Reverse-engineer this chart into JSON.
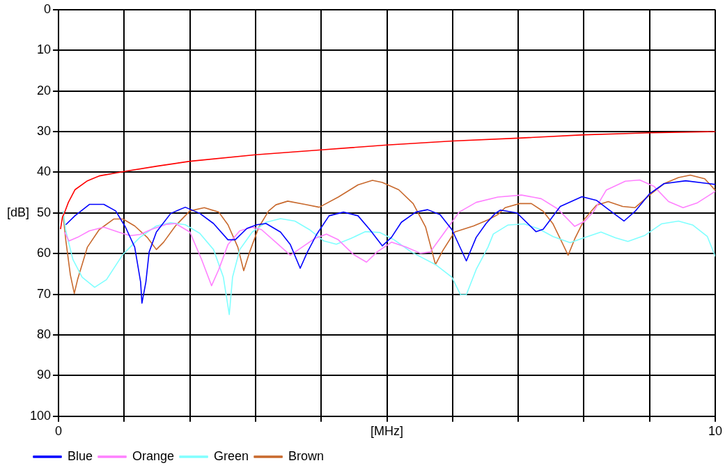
{
  "chart_data": {
    "type": "line",
    "xlabel": "[MHz]",
    "ylabel": "[dB]",
    "xlim": [
      0,
      10
    ],
    "ylim": [
      100,
      0
    ],
    "xticks": [
      0,
      {
        "value": 1,
        "label": null
      },
      {
        "value": 2,
        "label": null
      },
      {
        "value": 3,
        "label": null
      },
      {
        "value": 4,
        "label": null
      },
      {
        "value": 5,
        "label": null
      },
      {
        "value": 6,
        "label": null
      },
      {
        "value": 7,
        "label": null
      },
      {
        "value": 8,
        "label": null
      },
      {
        "value": 9,
        "label": null
      },
      10
    ],
    "yticks": [
      0,
      10,
      20,
      30,
      40,
      50,
      60,
      70,
      80,
      90,
      100
    ],
    "grid": true,
    "legend": "bottom",
    "marker": "none",
    "line_style": "solid",
    "series": [
      {
        "color": "#ff0000",
        "x": [
          0.03,
          0.06,
          0.09,
          0.15,
          0.25,
          0.44,
          0.62,
          1,
          1.5,
          2,
          3,
          4,
          5,
          6,
          7,
          8,
          9,
          10
        ],
        "values": [
          54,
          51,
          50,
          47.4,
          44.3,
          42.1,
          40.9,
          39.8,
          38.5,
          37.3,
          35.7,
          34.5,
          33.3,
          32.3,
          31.6,
          30.8,
          30.3,
          30
        ]
      },
      {
        "name": "Blue",
        "color": "#0000ff",
        "x": [
          0.11,
          0.25,
          0.47,
          0.69,
          0.87,
          1.02,
          1.16,
          1.25,
          1.27,
          1.33,
          1.38,
          1.49,
          1.71,
          1.93,
          2.15,
          2.36,
          2.58,
          2.69,
          2.87,
          3.02,
          3.16,
          3.38,
          3.53,
          3.68,
          3.79,
          3.93,
          4.12,
          4.34,
          4.56,
          4.74,
          4.93,
          5.07,
          5.22,
          5.44,
          5.62,
          5.81,
          5.99,
          6.21,
          6.36,
          6.51,
          6.65,
          6.73,
          6.98,
          7.27,
          7.38,
          7.64,
          7.97,
          8.19,
          8.41,
          8.61,
          8.78,
          9,
          9.22,
          9.55,
          10
        ],
        "values": [
          52.9,
          50.7,
          47.9,
          47.9,
          49.5,
          53.5,
          58.4,
          67,
          72.2,
          67,
          59.6,
          54.7,
          50.1,
          48.6,
          50.1,
          52.6,
          56.6,
          56.6,
          53.8,
          52.9,
          52.6,
          54.7,
          57.8,
          63.6,
          59.6,
          55.3,
          50.7,
          49.8,
          50.7,
          54.1,
          58.1,
          56,
          52.3,
          49.8,
          49.2,
          50.4,
          54.1,
          61.8,
          56,
          52.6,
          50.1,
          49.3,
          50,
          54.6,
          54,
          48.4,
          46,
          46.9,
          49.6,
          52,
          49.6,
          45.3,
          42.8,
          42.1,
          43
        ]
      },
      {
        "name": "Orange",
        "color": "#ff80ff",
        "x": [
          0.09,
          0.16,
          0.29,
          0.47,
          0.69,
          0.91,
          1.09,
          1.24,
          1.42,
          1.64,
          1.78,
          2,
          2.18,
          2.33,
          2.44,
          2.58,
          2.76,
          2.95,
          3.09,
          3.35,
          3.53,
          3.71,
          3.9,
          4.08,
          4.26,
          4.49,
          4.69,
          4.85,
          5.07,
          5.29,
          5.51,
          5.66,
          5.88,
          6.1,
          6.36,
          6.69,
          7.05,
          7.35,
          7.6,
          7.86,
          8.01,
          8.15,
          8.34,
          8.63,
          8.85,
          9.07,
          9.29,
          9.51,
          9.73,
          10
        ],
        "values": [
          54.7,
          56.9,
          56,
          54.4,
          53.5,
          54.7,
          55.6,
          55.3,
          54,
          52.8,
          52.6,
          54.7,
          61.5,
          67.9,
          63.9,
          57.8,
          54.4,
          53.5,
          54.1,
          57.8,
          60.4,
          58.4,
          56.3,
          55.2,
          56.6,
          60.2,
          62.1,
          59.6,
          57.2,
          58.4,
          59.9,
          59.6,
          54.7,
          49.8,
          47.4,
          46.1,
          45.6,
          46.5,
          49,
          53.3,
          52.1,
          49.6,
          44.4,
          42.2,
          41.9,
          43.5,
          47.2,
          48.7,
          47.5,
          44.7
        ]
      },
      {
        "name": "Green",
        "color": "#80ffff",
        "x": [
          0.07,
          0.11,
          0.22,
          0.36,
          0.55,
          0.73,
          0.98,
          1.24,
          1.49,
          1.71,
          1.93,
          2.15,
          2.36,
          2.51,
          2.6,
          2.65,
          2.76,
          2.95,
          3.16,
          3.38,
          3.6,
          3.82,
          4.04,
          4.23,
          4.45,
          4.67,
          4.89,
          5.11,
          5.37,
          5.74,
          5.99,
          6.12,
          6.21,
          6.36,
          6.54,
          6.62,
          6.84,
          7.09,
          7.31,
          7.53,
          7.79,
          7.97,
          8.26,
          8.48,
          8.67,
          8.93,
          9.18,
          9.44,
          9.66,
          9.88,
          10
        ],
        "values": [
          49.5,
          54.4,
          61.5,
          65.8,
          68.3,
          66.4,
          60.2,
          56,
          53.2,
          52.4,
          52.9,
          55,
          59,
          65.8,
          75,
          65.8,
          59,
          54.7,
          52.3,
          51.4,
          52,
          54.1,
          56.9,
          57.7,
          56.3,
          54.6,
          54.8,
          56.6,
          59.6,
          62.7,
          65.8,
          70.1,
          70.1,
          63.9,
          58.4,
          55.2,
          53,
          52.7,
          53.9,
          55.8,
          57.3,
          56.3,
          54.7,
          56.1,
          57,
          55.5,
          52.7,
          52,
          53,
          55.8,
          60.7
        ]
      },
      {
        "name": "Brown",
        "color": "#c8692d",
        "x": [
          0.07,
          0.11,
          0.18,
          0.24,
          0.29,
          0.44,
          0.62,
          0.84,
          0.98,
          1.16,
          1.35,
          1.49,
          1.6,
          1.78,
          2,
          2.22,
          2.44,
          2.58,
          2.73,
          2.82,
          2.91,
          3.05,
          3.2,
          3.31,
          3.49,
          3.75,
          3.97,
          4.26,
          4.56,
          4.78,
          4.93,
          5.18,
          5.4,
          5.59,
          5.74,
          5.85,
          6.03,
          6.32,
          6.54,
          6.69,
          6.8,
          7.02,
          7.2,
          7.38,
          7.53,
          7.68,
          7.76,
          7.86,
          8.01,
          8.19,
          8.37,
          8.59,
          8.78,
          9,
          9.22,
          9.44,
          9.62,
          9.84,
          10
        ],
        "values": [
          50.4,
          56.6,
          65.2,
          69.8,
          66.4,
          58.4,
          54.1,
          51.5,
          51.5,
          53.2,
          56,
          59,
          57.2,
          53.2,
          49.5,
          48.7,
          49.8,
          52.9,
          58.4,
          64.2,
          59.6,
          53.5,
          49.5,
          48,
          47.1,
          47.9,
          48.6,
          46.1,
          43.1,
          42,
          42.5,
          44.3,
          47.7,
          53.5,
          62.7,
          59.3,
          54.7,
          53.2,
          51.7,
          50.4,
          48.7,
          47.7,
          47.7,
          49.6,
          52.7,
          57.7,
          60.4,
          56.4,
          51.5,
          48.1,
          47.2,
          48.4,
          48.7,
          45.6,
          42.8,
          41.3,
          40.7,
          41.6,
          44.4
        ]
      }
    ]
  }
}
